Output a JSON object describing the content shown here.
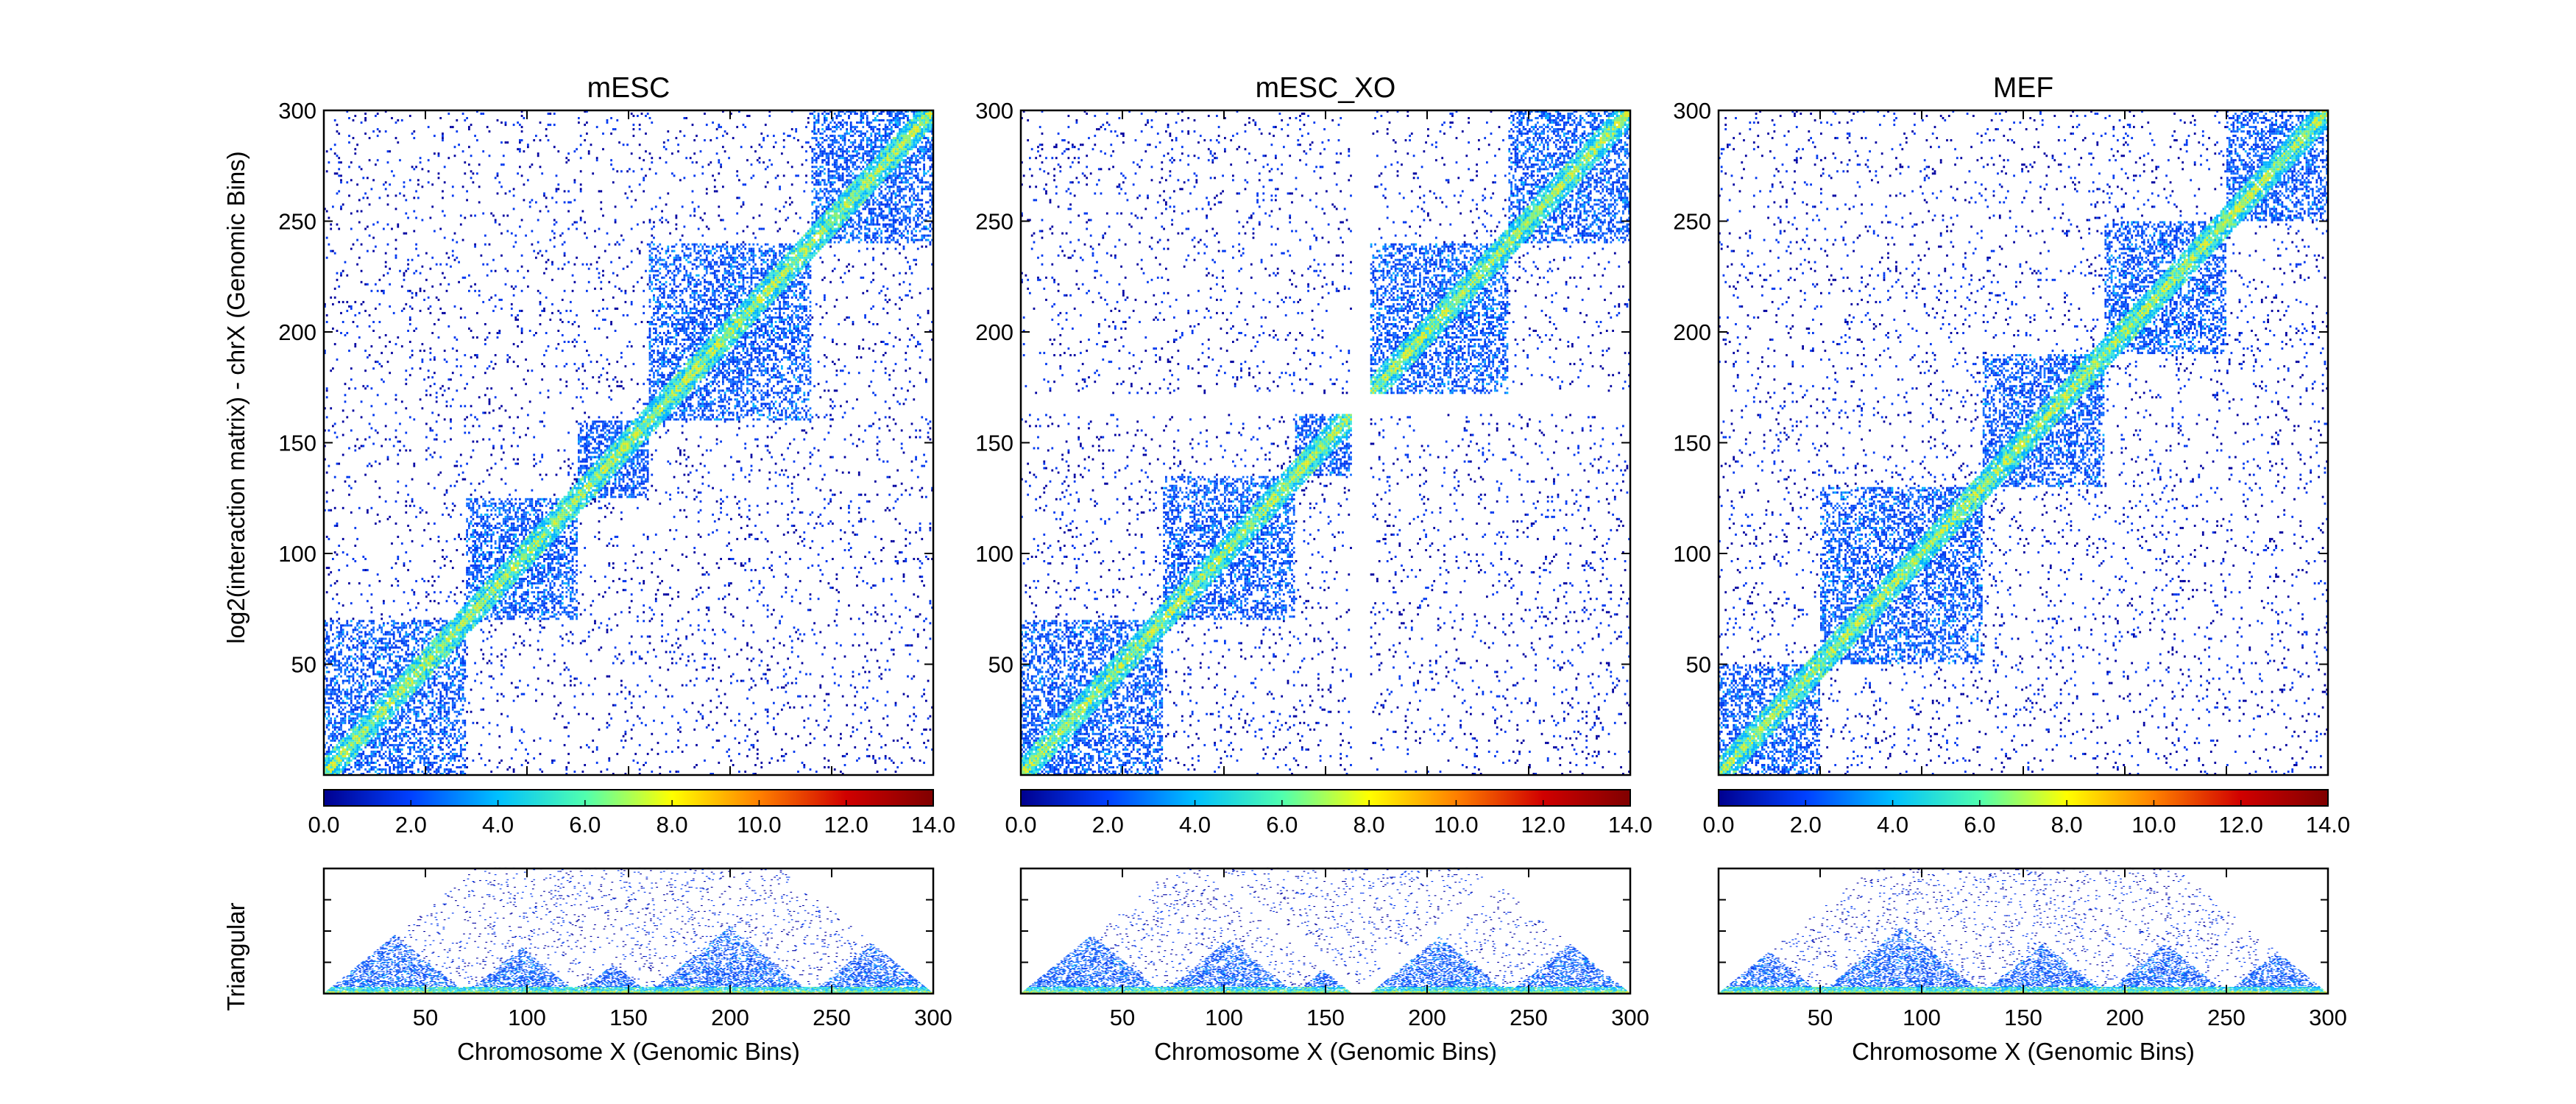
{
  "chart_data": {
    "type": "heatmap",
    "panels": [
      {
        "title": "mESC",
        "tads": [
          [
            0,
            70
          ],
          [
            70,
            125
          ],
          [
            125,
            160
          ],
          [
            160,
            240
          ],
          [
            240,
            300
          ]
        ],
        "gap": null
      },
      {
        "title": "mESC_XO",
        "tads": [
          [
            0,
            70
          ],
          [
            70,
            135
          ],
          [
            135,
            165
          ],
          [
            165,
            240
          ],
          [
            240,
            300
          ]
        ],
        "gap": [
          163,
          172
        ]
      },
      {
        "title": "MEF",
        "tads": [
          [
            0,
            50
          ],
          [
            50,
            130
          ],
          [
            130,
            190
          ],
          [
            190,
            250
          ],
          [
            250,
            300
          ]
        ],
        "gap": null
      }
    ],
    "matrix_range": [
      0,
      300
    ],
    "matrix_ticks": [
      "50",
      "100",
      "150",
      "200",
      "250",
      "300"
    ],
    "y_label": "log2(interaction matrix) - chrX (Genomic Bins)",
    "triangular_label": "Triangular",
    "x_label": "Chromosome X (Genomic Bins)",
    "x_ticks": [
      "50",
      "100",
      "150",
      "200",
      "250",
      "300"
    ],
    "colorbar": {
      "range": [
        0,
        14
      ],
      "ticks": [
        "0.0",
        "2.0",
        "4.0",
        "6.0",
        "8.0",
        "10.0",
        "12.0",
        "14.0"
      ],
      "colors": [
        "#00008f",
        "#0040ff",
        "#00c0ff",
        "#50ffaf",
        "#ffff00",
        "#ff8000",
        "#d00000",
        "#800000"
      ]
    }
  }
}
